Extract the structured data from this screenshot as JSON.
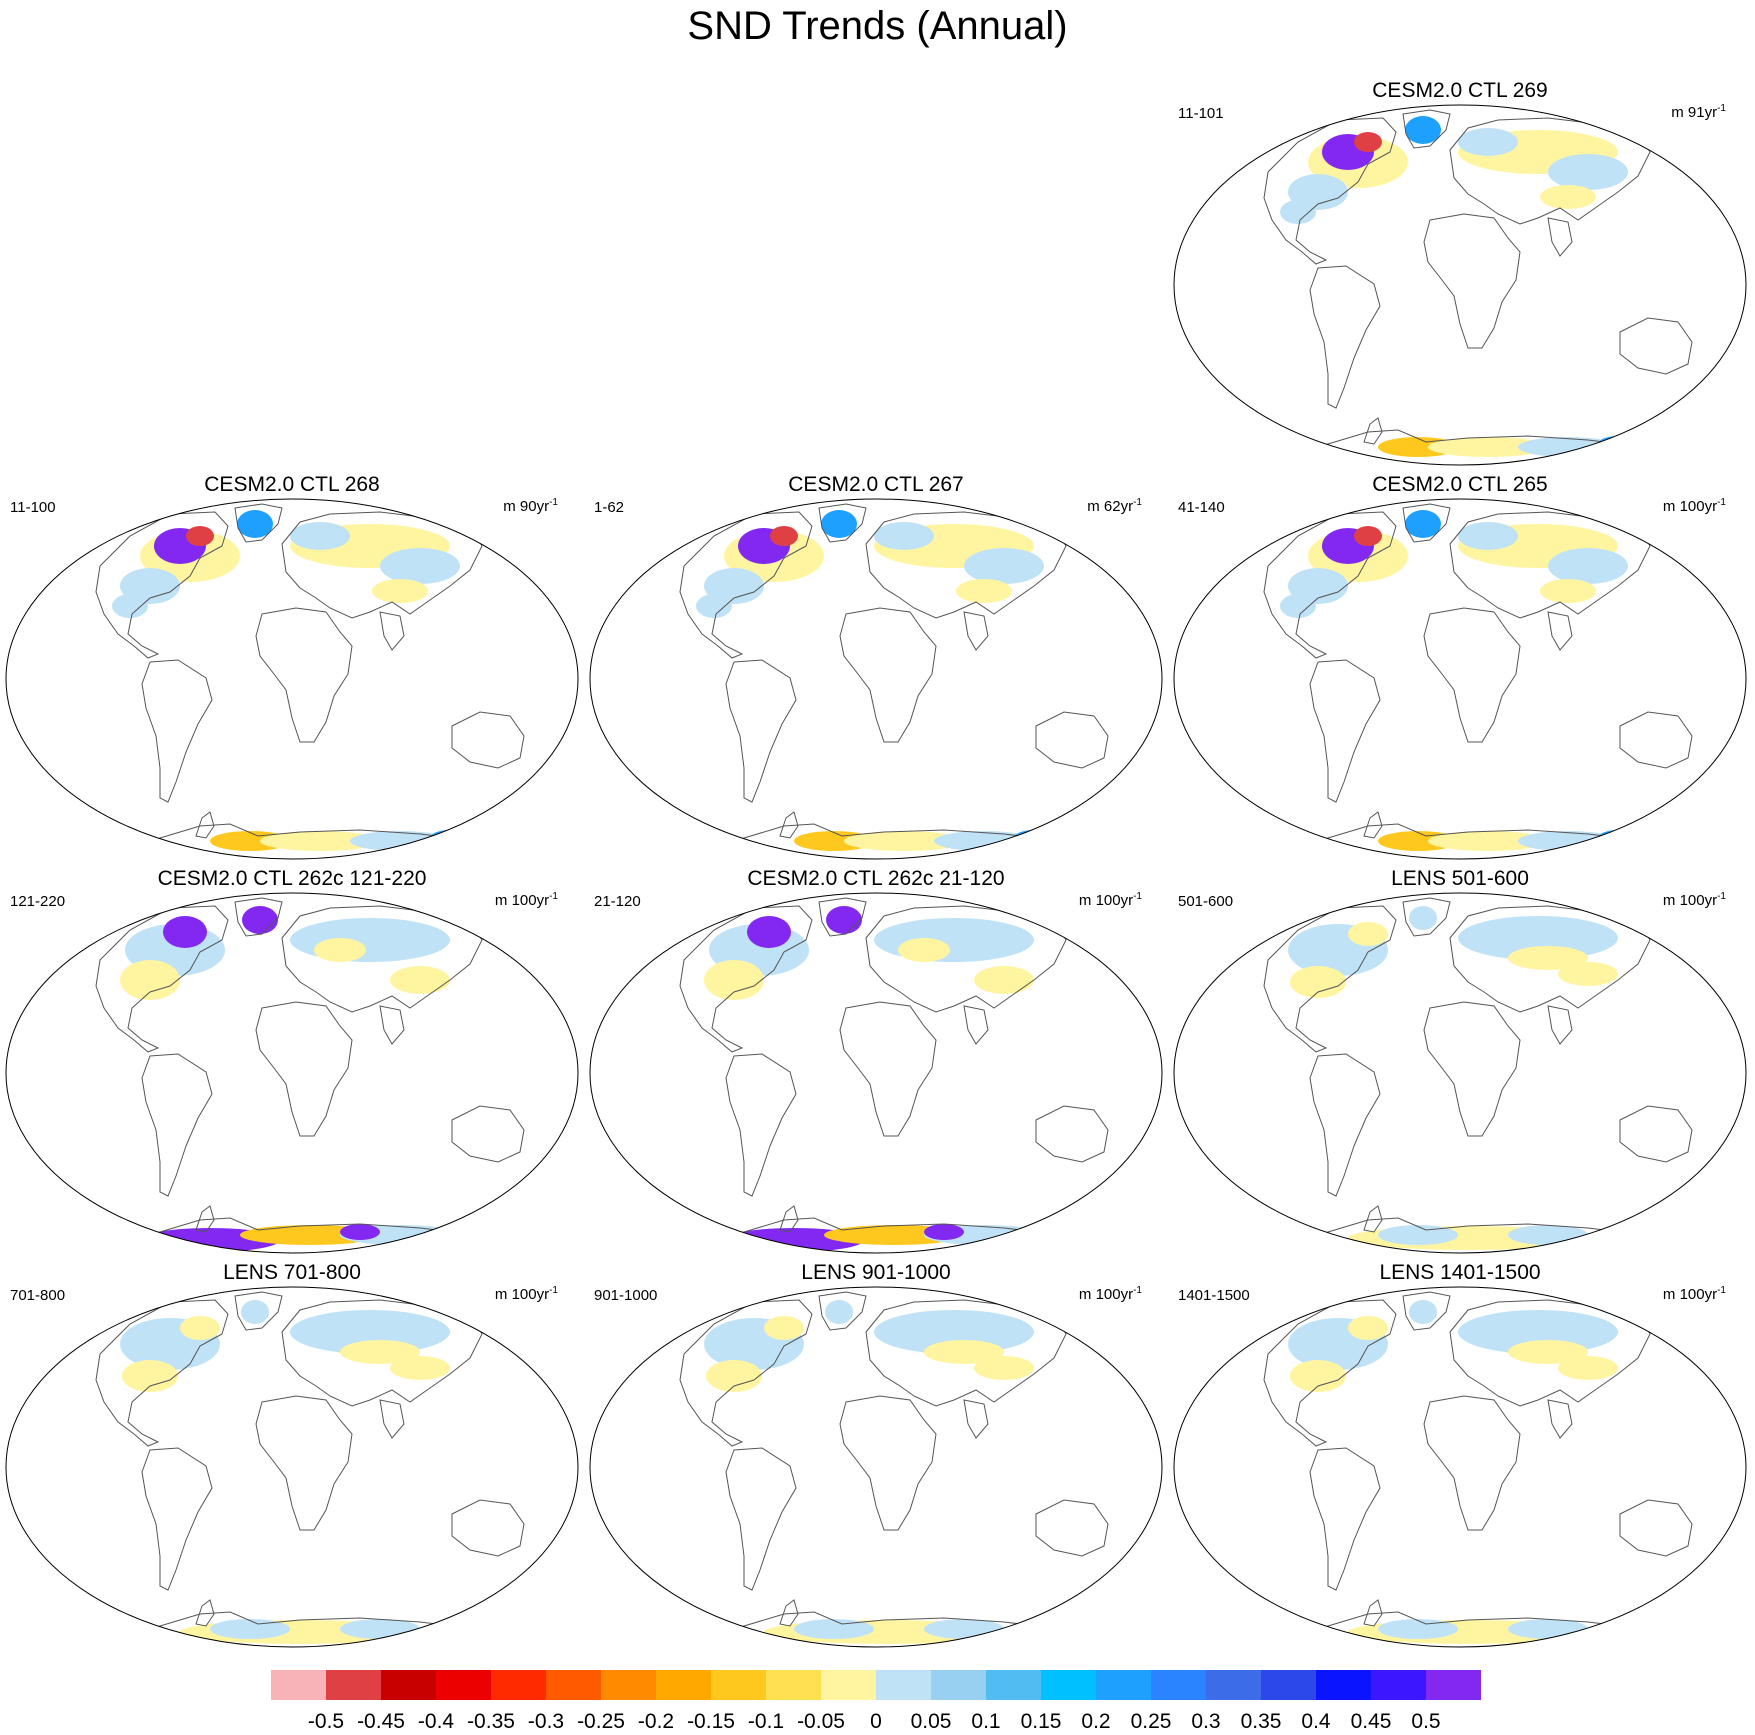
{
  "title": "SND Trends (Annual)",
  "panels": [
    {
      "title": "CESM2.0 CTL 269",
      "years": "11-101",
      "units_prefix": "m ",
      "units_base": "91yr",
      "units_exp": "-1",
      "pattern": "ctl"
    },
    {
      "title": "CESM2.0 CTL 268",
      "years": "11-100",
      "units_prefix": "m ",
      "units_base": "90yr",
      "units_exp": "-1",
      "pattern": "ctl"
    },
    {
      "title": "CESM2.0 CTL 267",
      "years": "1-62",
      "units_prefix": "m ",
      "units_base": "62yr",
      "units_exp": "-1",
      "pattern": "ctl"
    },
    {
      "title": "CESM2.0 CTL 265",
      "years": "41-140",
      "units_prefix": "m ",
      "units_base": "100yr",
      "units_exp": "-1",
      "pattern": "ctl"
    },
    {
      "title": "CESM2.0 CTL 262c 121-220",
      "years": "121-220",
      "units_prefix": "m ",
      "units_base": "100yr",
      "units_exp": "-1",
      "pattern": "strong"
    },
    {
      "title": "CESM2.0 CTL 262c 21-120",
      "years": "21-120",
      "units_prefix": "m ",
      "units_base": "100yr",
      "units_exp": "-1",
      "pattern": "strong"
    },
    {
      "title": "LENS 501-600",
      "years": "501-600",
      "units_prefix": "m ",
      "units_base": "100yr",
      "units_exp": "-1",
      "pattern": "lens"
    },
    {
      "title": "LENS 701-800",
      "years": "701-800",
      "units_prefix": "m ",
      "units_base": "100yr",
      "units_exp": "-1",
      "pattern": "lens"
    },
    {
      "title": "LENS 901-1000",
      "years": "901-1000",
      "units_prefix": "m ",
      "units_base": "100yr",
      "units_exp": "-1",
      "pattern": "lens"
    },
    {
      "title": "LENS 1401-1500",
      "years": "1401-1500",
      "units_prefix": "m ",
      "units_base": "100yr",
      "units_exp": "-1",
      "pattern": "lens"
    }
  ],
  "colorbar": {
    "labels": [
      "-0.5",
      "-0.45",
      "-0.4",
      "-0.35",
      "-0.3",
      "-0.25",
      "-0.2",
      "-0.15",
      "-0.1",
      "-0.05",
      "0",
      "0.05",
      "0.1",
      "0.15",
      "0.2",
      "0.25",
      "0.3",
      "0.35",
      "0.4",
      "0.45",
      "0.5"
    ],
    "colors": [
      "#f7b3b8",
      "#de4044",
      "#c80000",
      "#ec0000",
      "#ff2a00",
      "#ff5a00",
      "#ff8a00",
      "#ffa800",
      "#ffc81e",
      "#ffe050",
      "#fff5a0",
      "#c0e2f6",
      "#98d0f2",
      "#50bcf2",
      "#00c0ff",
      "#1ea0ff",
      "#2a84ff",
      "#3c6ce8",
      "#2c48e8",
      "#0a14ff",
      "#3c16ff",
      "#8228f0"
    ]
  },
  "map_colors": {
    "coast": "#555555",
    "frame": "#000000",
    "positive_light": "#c0e2f6",
    "negative_light": "#fff5a0",
    "negative_med": "#ffc81e",
    "negative_strong": "#ff8a00",
    "positive_strong": "#1ea0ff",
    "extreme_pos": "#8228f0",
    "extreme_neg": "#de4044"
  }
}
